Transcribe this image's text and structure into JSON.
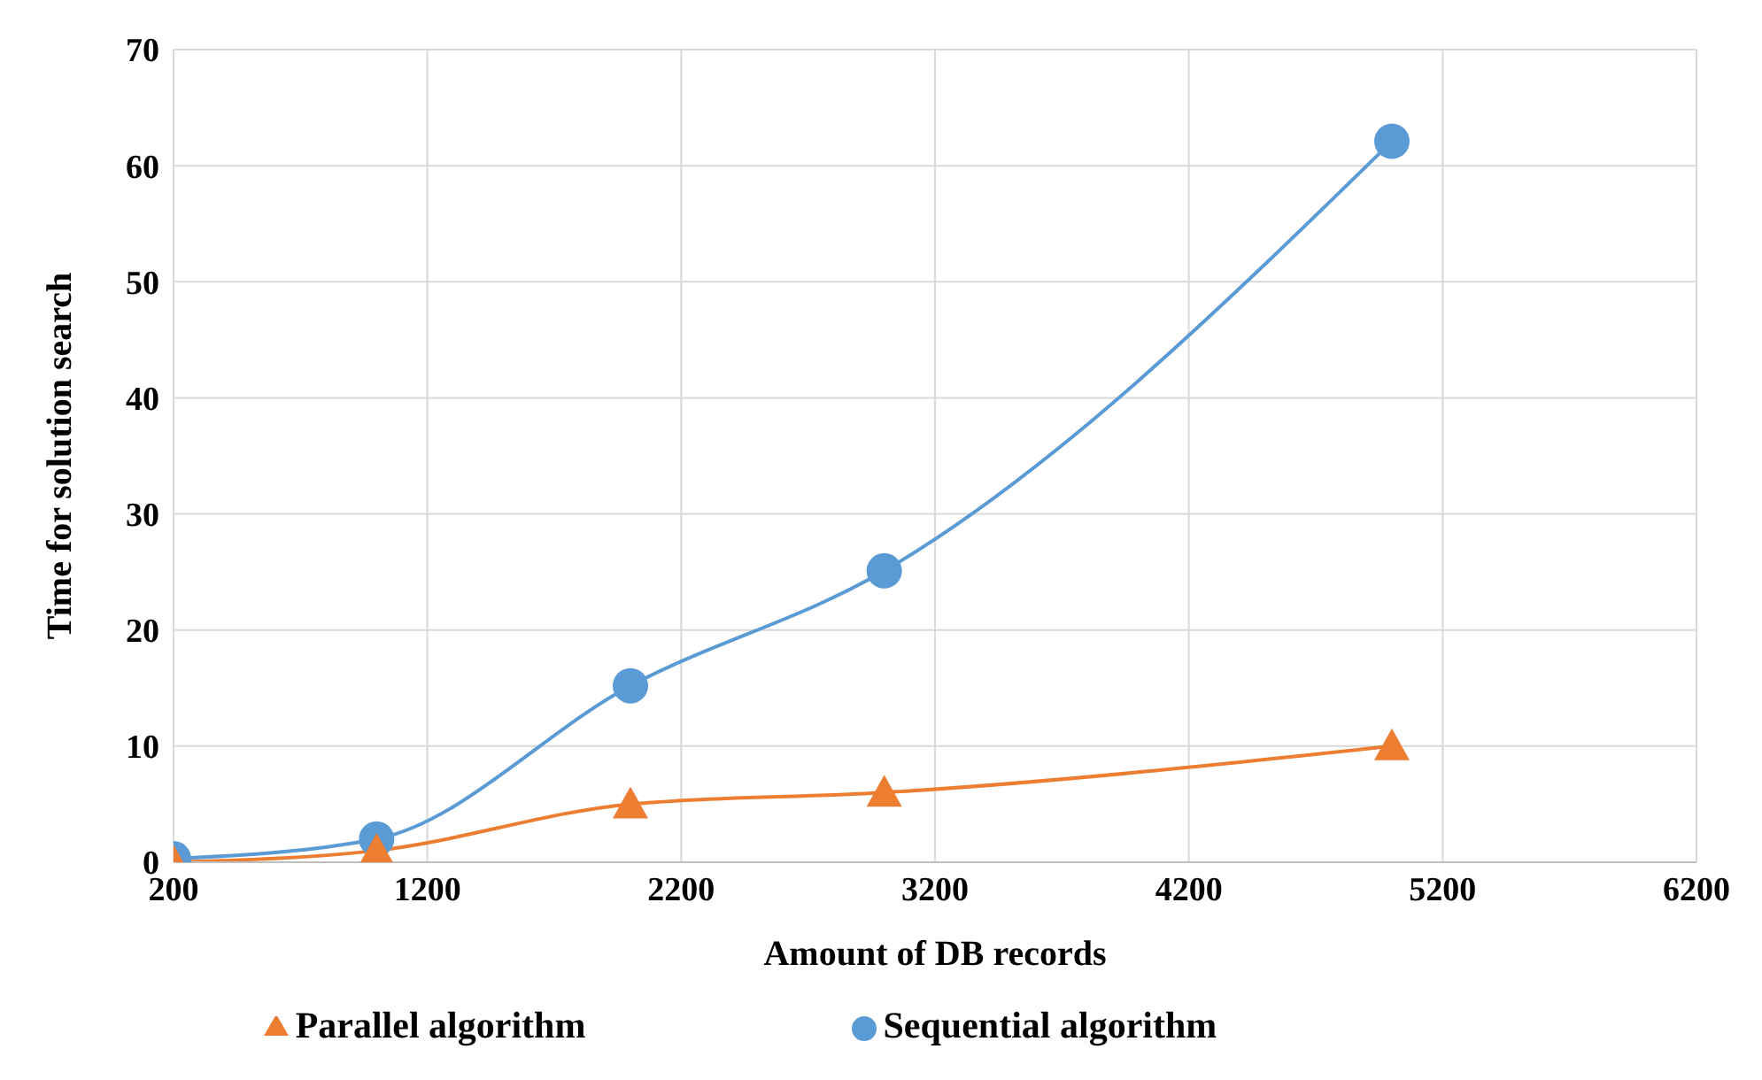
{
  "chart_data": {
    "type": "line",
    "xlabel": "Amount of DB records",
    "ylabel": "Time for solution search",
    "x": [
      200,
      1000,
      2000,
      3000,
      5000
    ],
    "series": [
      {
        "name": "Sequential algorithm",
        "color": "#5b9bd5",
        "marker": "circle",
        "values": [
          0.3,
          2,
          15.2,
          25.1,
          62.1
        ]
      },
      {
        "name": "Parallel algorithm",
        "color": "#ed7d31",
        "marker": "triangle",
        "values": [
          0,
          1,
          5,
          6,
          10
        ]
      }
    ],
    "xlim": [
      200,
      6200
    ],
    "xticks": [
      200,
      1200,
      2200,
      3200,
      4200,
      5200,
      6200
    ],
    "ylim": [
      0,
      70
    ],
    "yticks": [
      0,
      10,
      20,
      30,
      40,
      50,
      60,
      70
    ],
    "grid": true,
    "legend": "bottom"
  }
}
